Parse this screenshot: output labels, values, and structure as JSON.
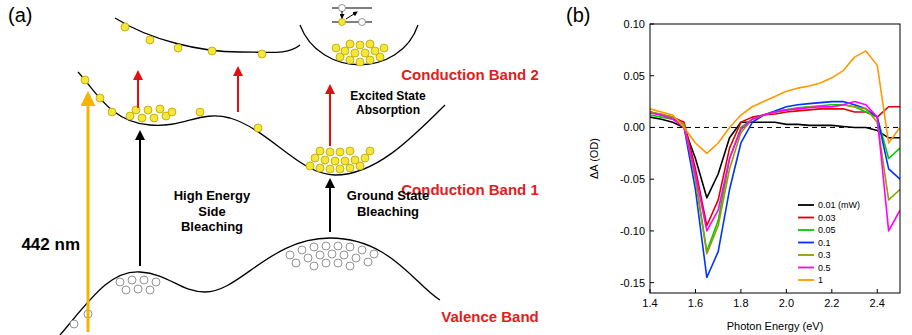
{
  "panels": [
    "(a)",
    "(b)"
  ],
  "diagram": {
    "excitation": "442 nm",
    "bands": [
      "Conduction Band 2",
      "Conduction Band 1",
      "Valence Band"
    ],
    "processes": [
      "Excited State Absorption",
      "High Energy Side Bleaching",
      "Ground State Bleaching"
    ]
  },
  "chart_data": {
    "type": "line",
    "x_label": "Photon Energy (eV)",
    "y_label": "ΔA (OD)",
    "x": [
      1.4,
      1.45,
      1.5,
      1.55,
      1.6,
      1.65,
      1.7,
      1.75,
      1.8,
      1.85,
      1.9,
      1.95,
      2.0,
      2.05,
      2.1,
      2.15,
      2.2,
      2.25,
      2.3,
      2.35,
      2.4,
      2.45,
      2.5
    ],
    "series": [
      {
        "name": "0.01 (mW)",
        "color": "#000000",
        "values": [
          0.01,
          0.008,
          0.005,
          0.0,
          -0.03,
          -0.068,
          -0.045,
          -0.01,
          0.005,
          0.005,
          0.005,
          0.005,
          0.003,
          0.003,
          0.002,
          0.002,
          0.002,
          0.001,
          0.0,
          0.0,
          -0.003,
          -0.01,
          -0.01
        ]
      },
      {
        "name": "0.03",
        "color": "#e00000",
        "values": [
          0.015,
          0.012,
          0.01,
          0.005,
          -0.04,
          -0.095,
          -0.07,
          -0.02,
          0.005,
          0.01,
          0.012,
          0.013,
          0.015,
          0.016,
          0.017,
          0.018,
          0.018,
          0.018,
          0.015,
          0.015,
          0.01,
          0.02,
          0.02
        ]
      },
      {
        "name": "0.05",
        "color": "#00cc00",
        "values": [
          0.012,
          0.01,
          0.008,
          0.003,
          -0.05,
          -0.12,
          -0.09,
          -0.03,
          0.0,
          0.008,
          0.012,
          0.015,
          0.017,
          0.019,
          0.02,
          0.021,
          0.022,
          0.022,
          0.02,
          0.015,
          0.01,
          -0.03,
          -0.02
        ]
      },
      {
        "name": "0.1",
        "color": "#0033ff",
        "values": [
          0.015,
          0.012,
          0.01,
          0.0,
          -0.06,
          -0.145,
          -0.12,
          -0.06,
          -0.015,
          0.005,
          0.012,
          0.016,
          0.02,
          0.022,
          0.023,
          0.024,
          0.025,
          0.025,
          0.022,
          0.018,
          0.01,
          -0.04,
          -0.05
        ]
      },
      {
        "name": "0.3",
        "color": "#999900",
        "values": [
          0.015,
          0.013,
          0.01,
          0.003,
          -0.05,
          -0.122,
          -0.095,
          -0.04,
          -0.005,
          0.008,
          0.012,
          0.015,
          0.017,
          0.018,
          0.02,
          0.02,
          0.02,
          0.022,
          0.02,
          0.018,
          0.005,
          -0.07,
          -0.06
        ]
      },
      {
        "name": "0.5",
        "color": "#ff00ff",
        "values": [
          0.014,
          0.012,
          0.008,
          0.0,
          -0.045,
          -0.1,
          -0.08,
          -0.03,
          -0.002,
          0.008,
          0.012,
          0.015,
          0.017,
          0.018,
          0.019,
          0.02,
          0.02,
          0.022,
          0.025,
          0.022,
          0.01,
          -0.1,
          -0.08
        ]
      },
      {
        "name": "1",
        "color": "#ff9900",
        "values": [
          0.018,
          0.015,
          0.012,
          0.0,
          -0.015,
          -0.025,
          -0.015,
          0.0,
          0.012,
          0.02,
          0.025,
          0.03,
          0.035,
          0.038,
          0.04,
          0.043,
          0.048,
          0.055,
          0.068,
          0.074,
          0.06,
          -0.015,
          0.0
        ]
      }
    ],
    "hline": 0,
    "xlim": [
      1.4,
      2.5
    ],
    "ylim": [
      -0.16,
      0.1
    ],
    "xticks": [
      1.4,
      1.6,
      1.8,
      {
        "value": 2.0,
        "label": "2.0"
      },
      2.2,
      2.4
    ],
    "yticks": [
      -0.15,
      {
        "value": -0.1,
        "label": "-0.10"
      },
      -0.05,
      {
        "value": 0,
        "label": "0.00"
      },
      0.05,
      {
        "value": 0.1,
        "label": "0.10"
      }
    ],
    "grid": false,
    "legend": "lower right"
  }
}
